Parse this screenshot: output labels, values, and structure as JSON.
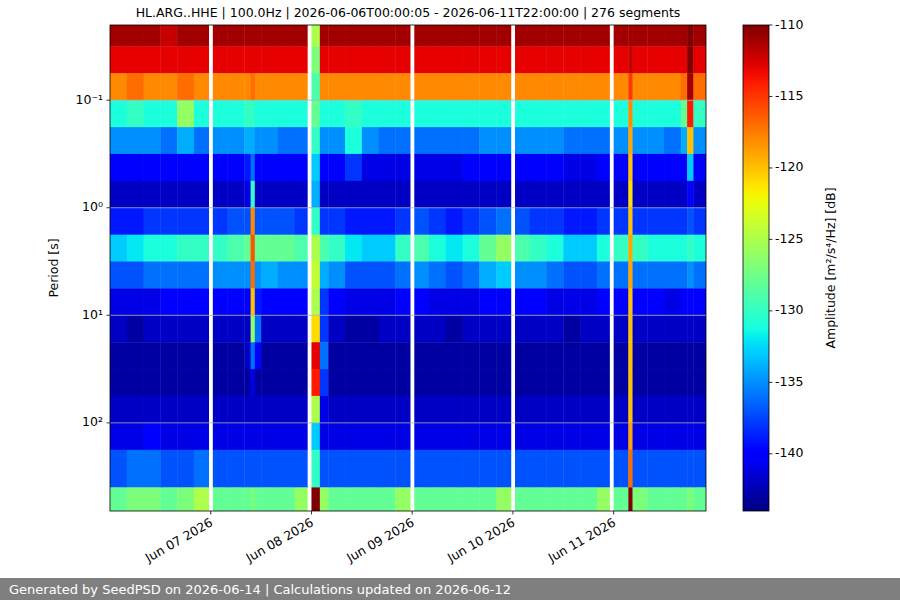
{
  "chart_data": {
    "type": "spectrogram",
    "title": "HL.ARG..HHE | 100.0Hz | 2026-06-06T00:00:05 - 2026-06-11T22:00:00 | 276 segments",
    "y_label": "Period [s]",
    "xlim": [
      "2026-06-06T00:00:05",
      "2026-06-11T22:00:00"
    ],
    "ylim": [
      660,
      0.02
    ],
    "log": "y",
    "grid": true,
    "xticks": [
      {
        "value": "2026-06-07T00:00",
        "label": "Jun 07 2026"
      },
      {
        "value": "2026-06-08T00:00",
        "label": "Jun 08 2026"
      },
      {
        "value": "2026-06-09T00:00",
        "label": "Jun 09 2026"
      },
      {
        "value": "2026-06-10T00:00",
        "label": "Jun 10 2026"
      },
      {
        "value": "2026-06-11T00:00",
        "label": "Jun 11 2026"
      }
    ],
    "yticks": [
      {
        "value": 0.1,
        "label": "10⁻¹"
      },
      {
        "value": 1,
        "label": "10⁰"
      },
      {
        "value": 10,
        "label": "10¹"
      },
      {
        "value": 100,
        "label": "10²"
      }
    ],
    "x_bins": [
      "2026-06-06T00:00:05",
      "2026-06-06T04:00",
      "2026-06-06T08:00",
      "2026-06-06T12:00",
      "2026-06-06T16:00",
      "2026-06-06T20:00",
      "2026-06-06T23:30",
      "2026-06-07T00:30",
      "2026-06-07T04:00",
      "2026-06-07T08:00",
      "2026-06-07T09:30",
      "2026-06-07T10:30",
      "2026-06-07T12:00",
      "2026-06-07T16:00",
      "2026-06-07T20:00",
      "2026-06-07T23:00",
      "2026-06-08T00:00",
      "2026-06-08T02:00",
      "2026-06-08T04:00",
      "2026-06-08T08:00",
      "2026-06-08T12:00",
      "2026-06-08T16:00",
      "2026-06-08T20:00",
      "2026-06-08T23:30",
      "2026-06-09T00:30",
      "2026-06-09T04:00",
      "2026-06-09T08:00",
      "2026-06-09T12:00",
      "2026-06-09T16:00",
      "2026-06-09T20:00",
      "2026-06-09T23:30",
      "2026-06-10T00:30",
      "2026-06-10T04:00",
      "2026-06-10T08:00",
      "2026-06-10T12:00",
      "2026-06-10T16:00",
      "2026-06-10T20:00",
      "2026-06-10T23:00",
      "2026-06-11T00:00",
      "2026-06-11T03:30",
      "2026-06-11T04:30",
      "2026-06-11T08:00",
      "2026-06-11T12:00",
      "2026-06-11T16:00",
      "2026-06-11T17:30",
      "2026-06-11T19:00",
      "2026-06-11T22:00"
    ],
    "y_bins": [
      0.02,
      0.0316,
      0.0562,
      0.1,
      0.178,
      0.316,
      0.562,
      1,
      1.78,
      3.16,
      5.62,
      10,
      17.8,
      31.6,
      56.2,
      100,
      178,
      398,
      660
    ],
    "cells": [
      [
        -111,
        -113,
        -118,
        -131,
        -135,
        -140,
        -142,
        -139,
        -133,
        -137,
        -141,
        -142,
        -143,
        -143,
        -142,
        -141,
        -137,
        -128
      ],
      [
        -111,
        -113,
        -117,
        -130,
        -135,
        -140,
        -142,
        -139,
        -132,
        -137,
        -141,
        -143,
        -143,
        -143,
        -142,
        -141,
        -136,
        -127
      ],
      [
        -111,
        -113,
        -118,
        -131,
        -135,
        -140,
        -142,
        -138,
        -131,
        -136,
        -141,
        -142,
        -143,
        -143,
        -142,
        -140,
        -136,
        -127
      ],
      [
        -112,
        -113,
        -118,
        -131,
        -136,
        -140,
        -142,
        -138,
        -131,
        -136,
        -140,
        -142,
        -143,
        -143,
        -142,
        -141,
        -137,
        -128
      ],
      [
        -111,
        -113,
        -117,
        -126,
        -134,
        -140,
        -142,
        -138,
        -130,
        -136,
        -140,
        -142,
        -143,
        -143,
        -142,
        -141,
        -137,
        -127
      ],
      [
        -111,
        -113,
        -118,
        -131,
        -136,
        -140,
        -142,
        -138,
        -130,
        -136,
        -140,
        -142,
        -143,
        -143,
        -142,
        -141,
        -136,
        -125
      ],
      [
        null,
        null,
        null,
        null,
        null,
        null,
        null,
        null,
        null,
        null,
        null,
        null,
        null,
        null,
        null,
        null,
        null,
        null
      ],
      [
        -111,
        -113,
        -118,
        -131,
        -135,
        -140,
        -142,
        -138,
        -130,
        -135,
        -140,
        -142,
        -143,
        -143,
        -142,
        -141,
        -137,
        -128
      ],
      [
        -111,
        -113,
        -118,
        -131,
        -135,
        -140,
        -142,
        -137,
        -129,
        -135,
        -140,
        -142,
        -143,
        -143,
        -142,
        -141,
        -137,
        -128
      ],
      [
        -111,
        -113,
        -118,
        -130,
        -134,
        -139,
        -141,
        -137,
        -128,
        -135,
        -140,
        -142,
        -142,
        -143,
        -142,
        -141,
        -137,
        -128
      ],
      [
        -111,
        -113,
        -117,
        -130,
        -134,
        -136,
        -130,
        -118,
        -116,
        -117,
        -120,
        -126,
        -136,
        -141,
        -142,
        -141,
        -137,
        -127
      ],
      [
        -111,
        -113,
        -118,
        -131,
        -135,
        -140,
        -142,
        -137,
        -128,
        -135,
        -139,
        -136,
        -140,
        -143,
        -142,
        -141,
        -137,
        -128
      ],
      [
        -111,
        -113,
        -118,
        -131,
        -135,
        -140,
        -142,
        -137,
        -128,
        -134,
        -140,
        -142,
        -143,
        -143,
        -142,
        -141,
        -137,
        -128
      ],
      [
        -111,
        -113,
        -118,
        -131,
        -136,
        -140,
        -142,
        -137,
        -128,
        -135,
        -140,
        -142,
        -143,
        -143,
        -142,
        -141,
        -137,
        -128
      ],
      [
        -111,
        -113,
        -118,
        -131,
        -136,
        -140,
        -142,
        -138,
        -129,
        -135,
        -140,
        -142,
        -143,
        -143,
        -142,
        -141,
        -137,
        -126
      ],
      [
        null,
        null,
        null,
        null,
        null,
        null,
        null,
        null,
        null,
        null,
        null,
        null,
        null,
        null,
        null,
        null,
        null,
        null
      ],
      [
        -125,
        -127,
        -129,
        -128,
        -130,
        -133,
        -134,
        -130,
        -125,
        -124,
        -125,
        -121,
        -113,
        -114,
        -125,
        -133,
        -130,
        -110
      ],
      [
        -111,
        -113,
        -118,
        -131,
        -135,
        -140,
        -142,
        -138,
        -129,
        -134,
        -138,
        -138,
        -136,
        -138,
        -141,
        -141,
        -137,
        -126
      ],
      [
        -111,
        -113,
        -118,
        -131,
        -135,
        -140,
        -142,
        -138,
        -130,
        -135,
        -140,
        -142,
        -143,
        -143,
        -142,
        -141,
        -137,
        -128
      ],
      [
        -111,
        -113,
        -118,
        -130,
        -131,
        -138,
        -142,
        -139,
        -132,
        -137,
        -141,
        -143,
        -143,
        -143,
        -142,
        -141,
        -137,
        -128
      ],
      [
        -111,
        -113,
        -118,
        -131,
        -135,
        -141,
        -142,
        -139,
        -133,
        -137,
        -141,
        -143,
        -143,
        -143,
        -142,
        -141,
        -137,
        -128
      ],
      [
        -111,
        -113,
        -118,
        -131,
        -136,
        -141,
        -142,
        -139,
        -133,
        -137,
        -141,
        -142,
        -143,
        -143,
        -142,
        -141,
        -137,
        -128
      ],
      [
        -111,
        -113,
        -118,
        -131,
        -136,
        -141,
        -142,
        -138,
        -130,
        -136,
        -140,
        -142,
        -143,
        -143,
        -142,
        -141,
        -137,
        -126
      ],
      [
        null,
        null,
        null,
        null,
        null,
        null,
        null,
        null,
        null,
        null,
        null,
        null,
        null,
        null,
        null,
        null,
        null,
        null
      ],
      [
        -111,
        -113,
        -118,
        -131,
        -136,
        -141,
        -142,
        -137,
        -129,
        -135,
        -140,
        -142,
        -143,
        -143,
        -142,
        -141,
        -137,
        -128
      ],
      [
        -111,
        -113,
        -118,
        -131,
        -136,
        -141,
        -142,
        -138,
        -131,
        -136,
        -141,
        -142,
        -143,
        -143,
        -142,
        -141,
        -137,
        -128
      ],
      [
        -111,
        -113,
        -118,
        -131,
        -136,
        -141,
        -142,
        -139,
        -132,
        -137,
        -141,
        -143,
        -143,
        -143,
        -142,
        -141,
        -137,
        -128
      ],
      [
        -111,
        -113,
        -118,
        -131,
        -136,
        -140,
        -142,
        -138,
        -131,
        -136,
        -141,
        -142,
        -143,
        -143,
        -142,
        -141,
        -137,
        -128
      ],
      [
        -111,
        -113,
        -118,
        -131,
        -135,
        -140,
        -142,
        -137,
        -128,
        -134,
        -140,
        -142,
        -143,
        -143,
        -142,
        -141,
        -137,
        -128
      ],
      [
        -111,
        -113,
        -118,
        -131,
        -135,
        -140,
        -142,
        -136,
        -126,
        -133,
        -140,
        -142,
        -143,
        -143,
        -142,
        -141,
        -137,
        -126
      ],
      [
        null,
        null,
        null,
        null,
        null,
        null,
        null,
        null,
        null,
        null,
        null,
        null,
        null,
        null,
        null,
        null,
        null,
        null
      ],
      [
        -111,
        -113,
        -118,
        -131,
        -135,
        -140,
        -142,
        -137,
        -129,
        -135,
        -140,
        -142,
        -143,
        -143,
        -142,
        -141,
        -137,
        -128
      ],
      [
        -111,
        -113,
        -118,
        -131,
        -135,
        -140,
        -142,
        -138,
        -130,
        -135,
        -140,
        -142,
        -143,
        -143,
        -142,
        -141,
        -137,
        -128
      ],
      [
        -111,
        -113,
        -118,
        -131,
        -135,
        -140,
        -142,
        -138,
        -131,
        -136,
        -141,
        -142,
        -143,
        -143,
        -142,
        -141,
        -137,
        -128
      ],
      [
        -111,
        -113,
        -118,
        -131,
        -136,
        -141,
        -142,
        -139,
        -133,
        -137,
        -141,
        -143,
        -143,
        -143,
        -142,
        -141,
        -137,
        -128
      ],
      [
        -111,
        -113,
        -118,
        -131,
        -136,
        -141,
        -142,
        -139,
        -133,
        -137,
        -141,
        -142,
        -143,
        -143,
        -142,
        -141,
        -137,
        -128
      ],
      [
        -111,
        -113,
        -118,
        -131,
        -136,
        -140,
        -142,
        -138,
        -131,
        -136,
        -140,
        -142,
        -143,
        -143,
        -142,
        -141,
        -137,
        -126
      ],
      [
        null,
        null,
        null,
        null,
        null,
        null,
        null,
        null,
        null,
        null,
        null,
        null,
        null,
        null,
        null,
        null,
        null,
        null
      ],
      [
        -111,
        -113,
        -118,
        -131,
        -135,
        -140,
        -142,
        -138,
        -130,
        -136,
        -140,
        -142,
        -143,
        -143,
        -142,
        -141,
        -137,
        -128
      ],
      [
        -111,
        -112,
        -115,
        -118,
        -119,
        -120,
        -121,
        -120,
        -119,
        -119,
        -120,
        -120,
        -120,
        -120,
        -120,
        -119,
        -117,
        -110
      ],
      [
        -111,
        -113,
        -118,
        -131,
        -135,
        -140,
        -142,
        -138,
        -130,
        -136,
        -140,
        -142,
        -143,
        -143,
        -142,
        -141,
        -137,
        -127
      ],
      [
        -111,
        -113,
        -118,
        -131,
        -135,
        -140,
        -142,
        -138,
        -131,
        -136,
        -140,
        -142,
        -143,
        -143,
        -142,
        -141,
        -137,
        -128
      ],
      [
        -111,
        -113,
        -118,
        -131,
        -136,
        -140,
        -142,
        -138,
        -131,
        -136,
        -141,
        -142,
        -143,
        -143,
        -142,
        -141,
        -137,
        -128
      ],
      [
        -111,
        -113,
        -117,
        -128,
        -134,
        -140,
        -142,
        -138,
        -131,
        -136,
        -140,
        -142,
        -143,
        -143,
        -142,
        -141,
        -137,
        -128
      ],
      [
        -110,
        -110,
        -111,
        -114,
        -120,
        -133,
        -140,
        -137,
        -130,
        -135,
        -140,
        -142,
        -143,
        -143,
        -142,
        -141,
        -137,
        -127
      ],
      [
        -111,
        -113,
        -117,
        -130,
        -135,
        -140,
        -142,
        -138,
        -131,
        -136,
        -140,
        -142,
        -143,
        -143,
        -142,
        -141,
        -137,
        -128
      ]
    ],
    "color_range": [
      -144,
      -110
    ],
    "color_ticks": [
      -110,
      -115,
      -120,
      -125,
      -130,
      -135,
      -140
    ],
    "color_label": "Amplitude [m²/s⁴/Hz] [dB]"
  },
  "footer": "Generated by SeedPSD on 2026-06-14 | Calculations updated on 2026-06-12"
}
